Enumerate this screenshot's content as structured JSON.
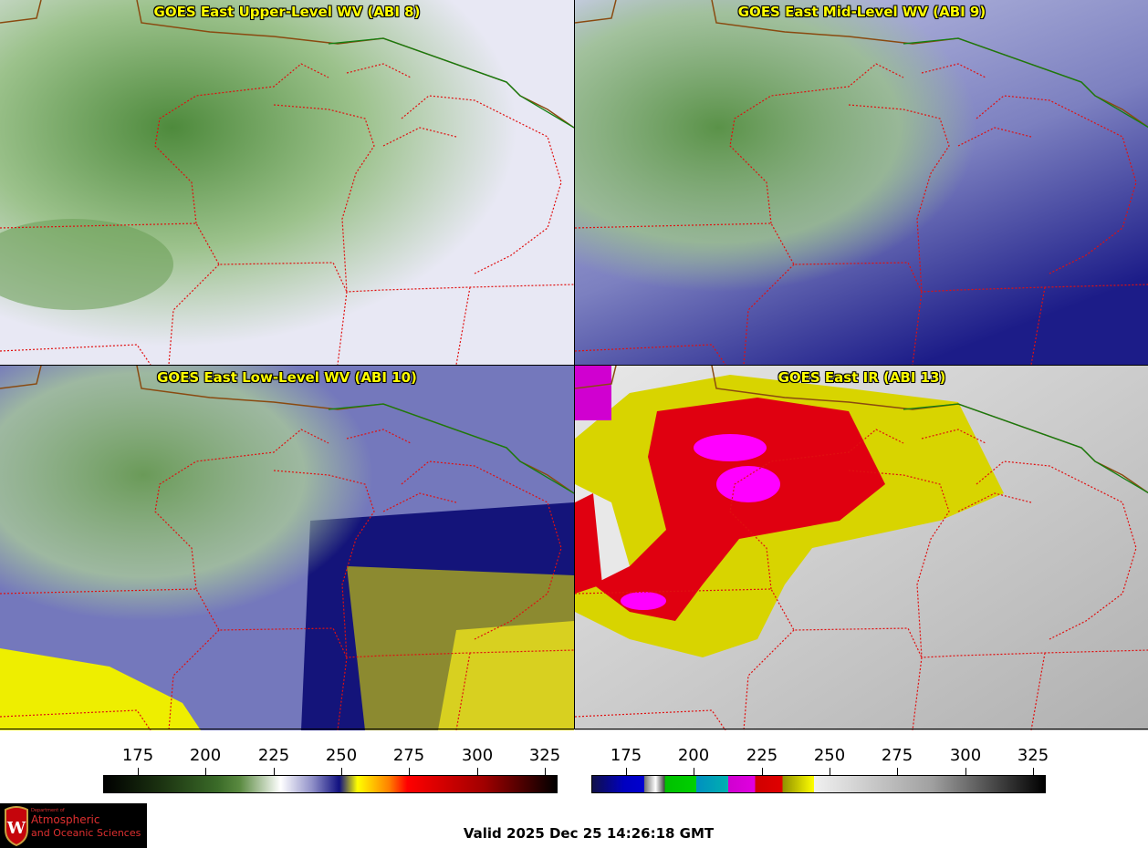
{
  "panels": [
    {
      "title": "GOES East Upper-Level WV (ABI 8)"
    },
    {
      "title": "GOES East Mid-Level WV (ABI 9)"
    },
    {
      "title": "GOES East Low-Level WV (ABI 10)"
    },
    {
      "title": "GOES East IR (ABI 13)"
    }
  ],
  "colorbars": [
    {
      "name": "water-vapor",
      "ticks": [
        "175",
        "200",
        "225",
        "250",
        "275",
        "300",
        "325"
      ]
    },
    {
      "name": "infrared",
      "ticks": [
        "175",
        "200",
        "225",
        "250",
        "275",
        "300",
        "325"
      ]
    }
  ],
  "valid": "Valid 2025 Dec 25 14:26:18 GMT",
  "logo": {
    "line1": "Department of",
    "line2": "Atmospheric",
    "line3": "and Oceanic Sciences"
  }
}
